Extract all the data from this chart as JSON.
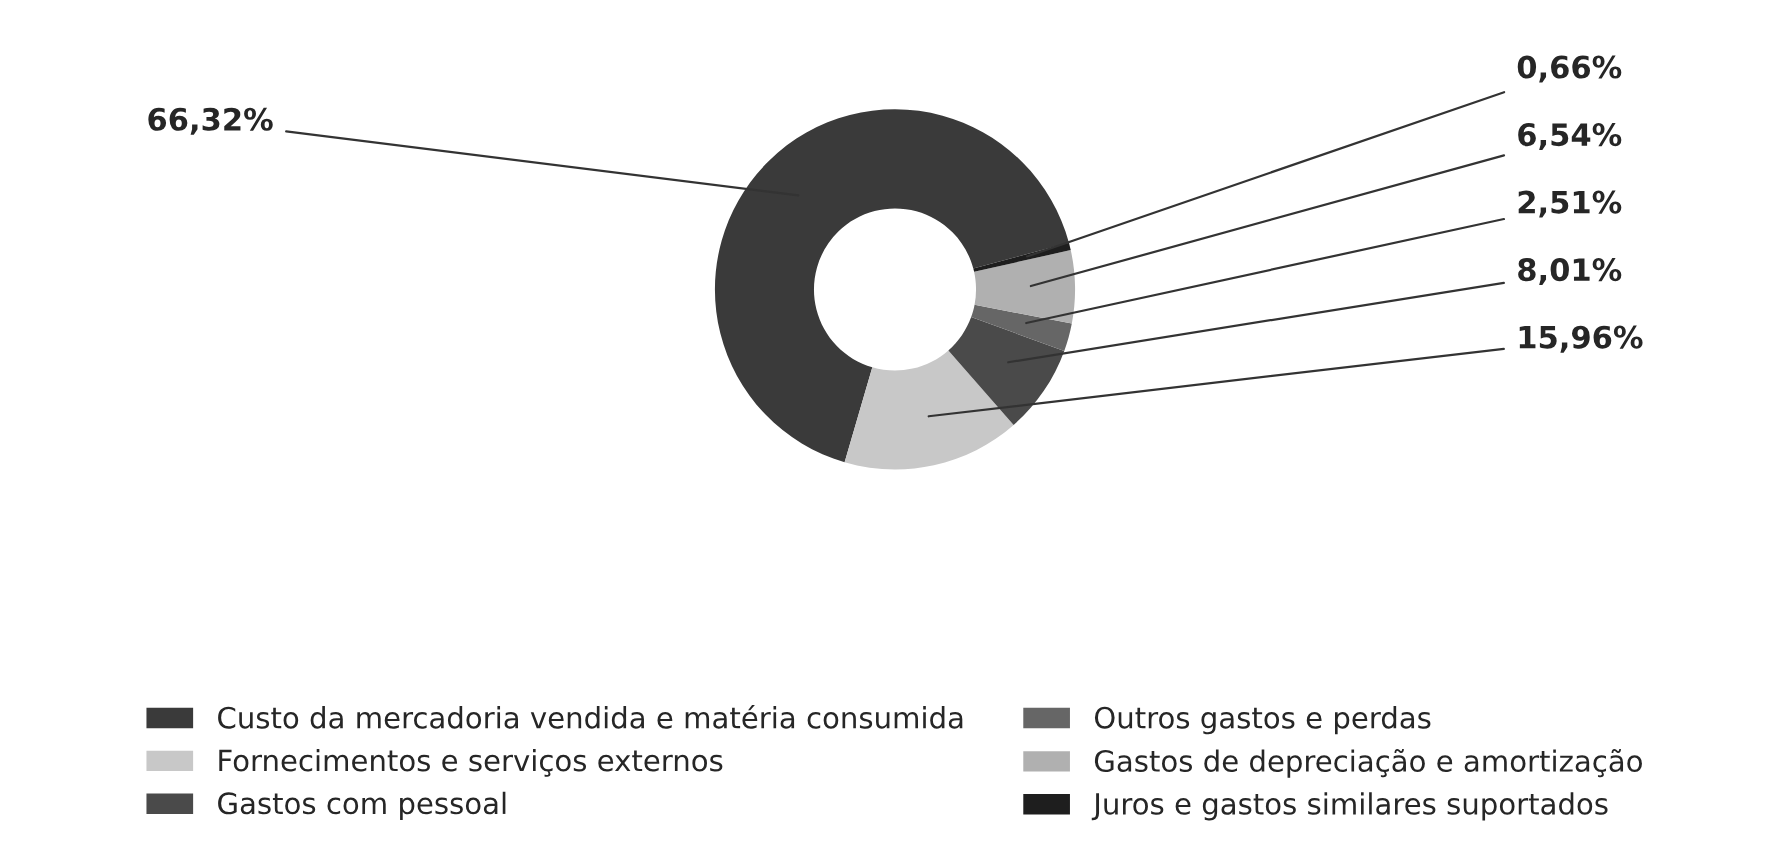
{
  "chart_data": {
    "type": "donut",
    "categories": [
      "Custo da mercadoria vendida e matéria consumida",
      "Fornecimentos e serviços externos",
      "Gastos com pessoal",
      "Outros gastos e perdas",
      "Gastos de depreciação e amortização",
      "Juros e gastos similares suportados"
    ],
    "values": [
      66.32,
      15.96,
      8.01,
      2.51,
      6.54,
      0.66
    ],
    "value_labels": [
      "66,32%",
      "15,96%",
      "8,01%",
      "2,51%",
      "6,54%",
      "0,66%"
    ],
    "colors": [
      "#3a3a3a",
      "#c8c8c8",
      "#4a4a4a",
      "#666666",
      "#b0b0b0",
      "#1e1e1e"
    ],
    "legend": "bottom"
  }
}
